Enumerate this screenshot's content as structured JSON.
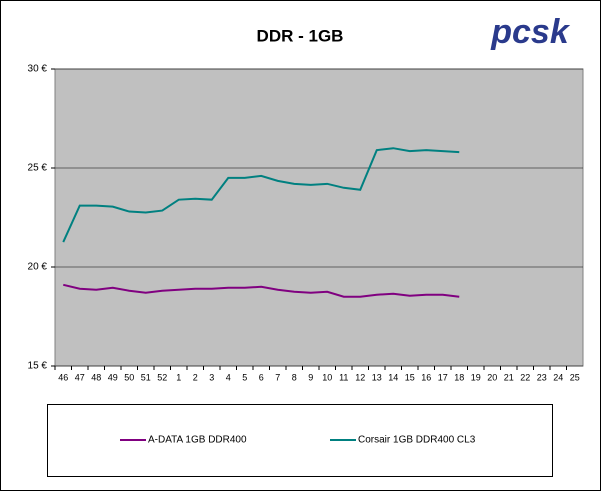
{
  "chart_data": {
    "type": "line",
    "title": "DDR - 1GB",
    "logo": "pcsk",
    "categories": [
      "46",
      "47",
      "48",
      "49",
      "50",
      "51",
      "52",
      "1",
      "2",
      "3",
      "4",
      "5",
      "6",
      "7",
      "8",
      "9",
      "10",
      "11",
      "12",
      "13",
      "14",
      "15",
      "16",
      "17",
      "18",
      "19",
      "20",
      "21",
      "22",
      "23",
      "24",
      "25"
    ],
    "series": [
      {
        "name": "A-DATA 1GB DDR400",
        "color": "#800080",
        "values": [
          19.1,
          18.9,
          18.85,
          18.95,
          18.8,
          18.7,
          18.8,
          18.85,
          18.9,
          18.9,
          18.95,
          18.95,
          19.0,
          18.85,
          18.75,
          18.7,
          18.75,
          18.5,
          18.5,
          18.6,
          18.65,
          18.55,
          18.6,
          18.6,
          18.5,
          null,
          null,
          null,
          null,
          null,
          null,
          null
        ]
      },
      {
        "name": "Corsair 1GB DDR400 CL3",
        "color": "#008080",
        "values": [
          21.26,
          23.1,
          23.1,
          23.05,
          22.8,
          22.75,
          22.85,
          23.4,
          23.45,
          23.4,
          24.5,
          24.5,
          24.6,
          24.35,
          24.2,
          24.15,
          24.2,
          24.0,
          23.9,
          25.9,
          26.0,
          25.85,
          25.9,
          25.85,
          25.8,
          null,
          null,
          null,
          null,
          null,
          null,
          null
        ]
      }
    ],
    "ylim": [
      15,
      30
    ],
    "yticks": [
      {
        "value": 15,
        "label": "15 €"
      },
      {
        "value": 20,
        "label": "20 €"
      },
      {
        "value": 25,
        "label": "25 €"
      },
      {
        "value": 30,
        "label": "30 €"
      }
    ],
    "grid": true,
    "legend": "bottom"
  }
}
